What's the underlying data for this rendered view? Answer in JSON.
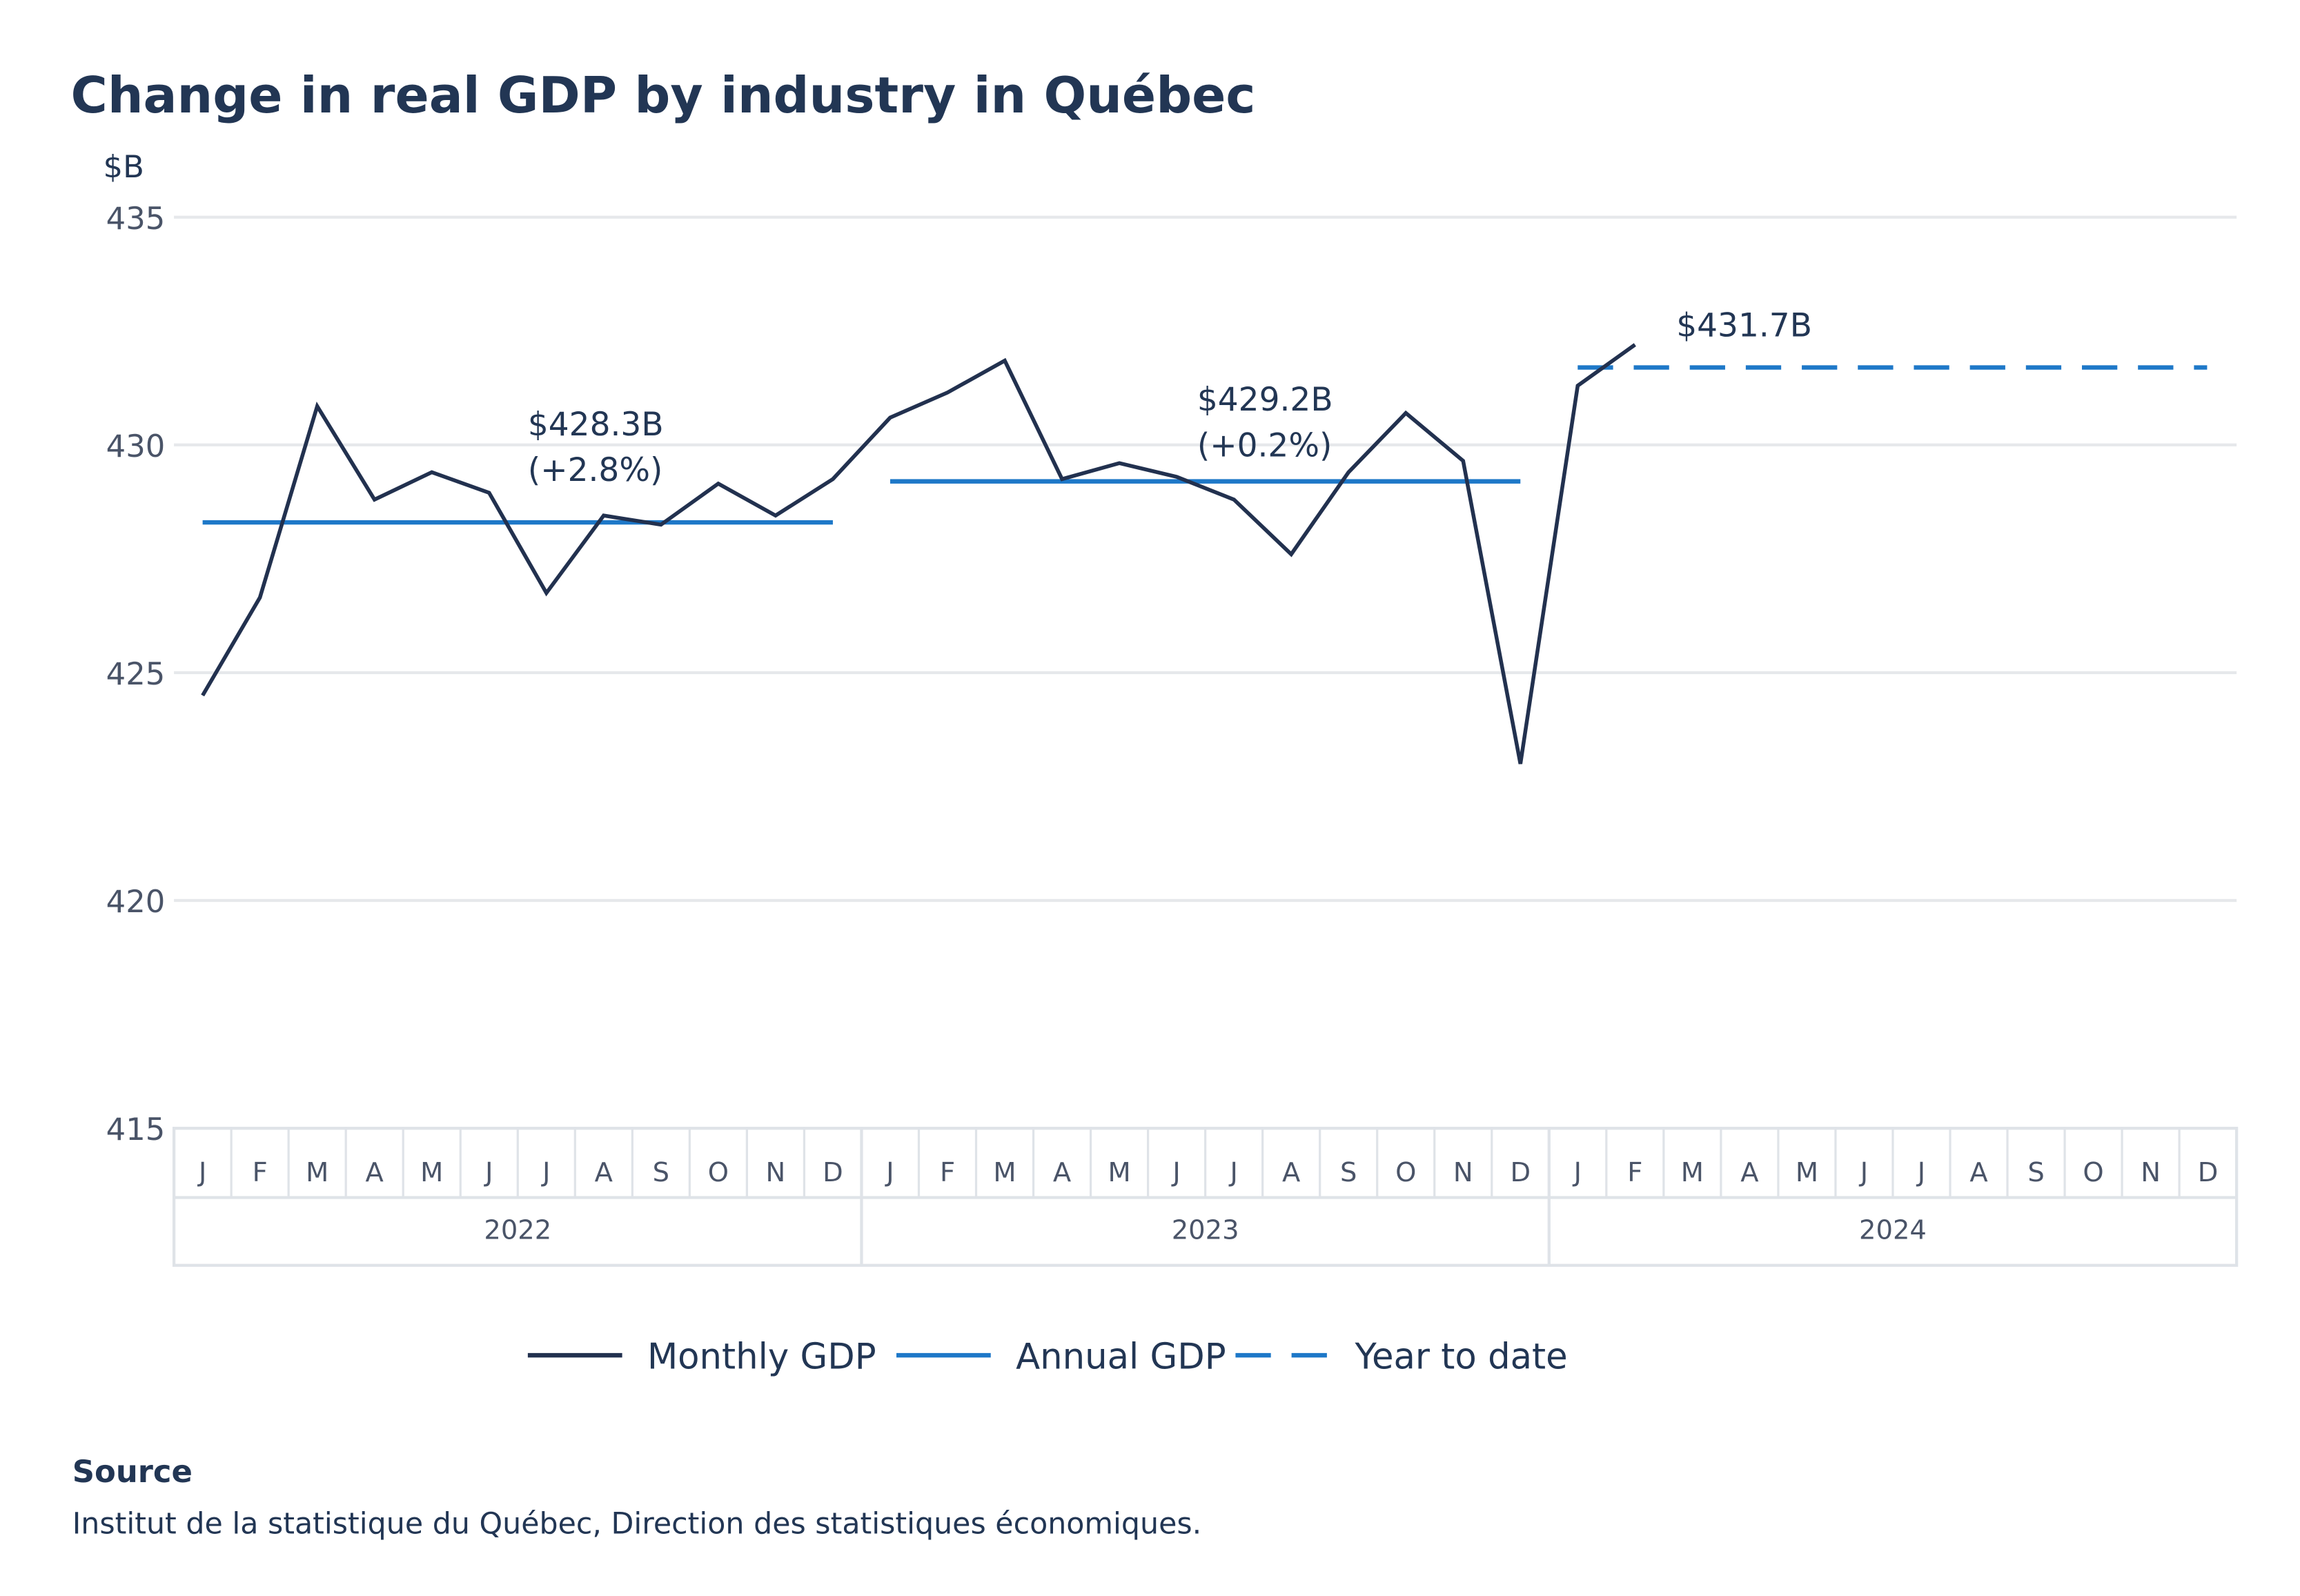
{
  "chart_data": {
    "type": "line",
    "title": "Change in real GDP by industry in Québec",
    "ylabel": "$B",
    "ylim": [
      415,
      435
    ],
    "yticks": [
      415,
      420,
      425,
      430,
      435
    ],
    "grid": true,
    "legend_position": "bottom",
    "month_labels": [
      "J",
      "F",
      "M",
      "A",
      "M",
      "J",
      "J",
      "A",
      "S",
      "O",
      "N",
      "D"
    ],
    "years": [
      "2022",
      "2023",
      "2024"
    ],
    "series": [
      {
        "name": "Monthly GDP",
        "color": "#22314f",
        "style": "solid",
        "values": [
          424.5,
          426.65,
          430.85,
          428.8,
          429.4,
          428.95,
          426.75,
          428.45,
          428.25,
          429.15,
          428.45,
          429.25,
          430.6,
          431.15,
          431.85,
          429.25,
          429.6,
          429.3,
          428.8,
          427.6,
          429.4,
          430.7,
          429.65,
          423.0,
          431.3,
          432.2
        ]
      },
      {
        "name": "Annual GDP",
        "color": "#1e78c8",
        "style": "solid",
        "segments": [
          {
            "year": "2022",
            "value": 428.3
          },
          {
            "year": "2023",
            "value": 429.2
          }
        ]
      },
      {
        "name": "Year to date",
        "color": "#1e78c8",
        "style": "dashed",
        "segments": [
          {
            "year": "2024",
            "value": 431.7
          }
        ]
      }
    ],
    "annotations": [
      {
        "year": "2022",
        "lines": [
          "$428.3B",
          "(+2.8%)"
        ]
      },
      {
        "year": "2023",
        "lines": [
          "$429.2B",
          "(+0.2%)"
        ]
      },
      {
        "year": "2024",
        "lines": [
          "$431.7B"
        ]
      }
    ]
  },
  "source": {
    "heading": "Source",
    "text": "Institut de la statistique du Québec, Direction des statistiques économiques."
  }
}
